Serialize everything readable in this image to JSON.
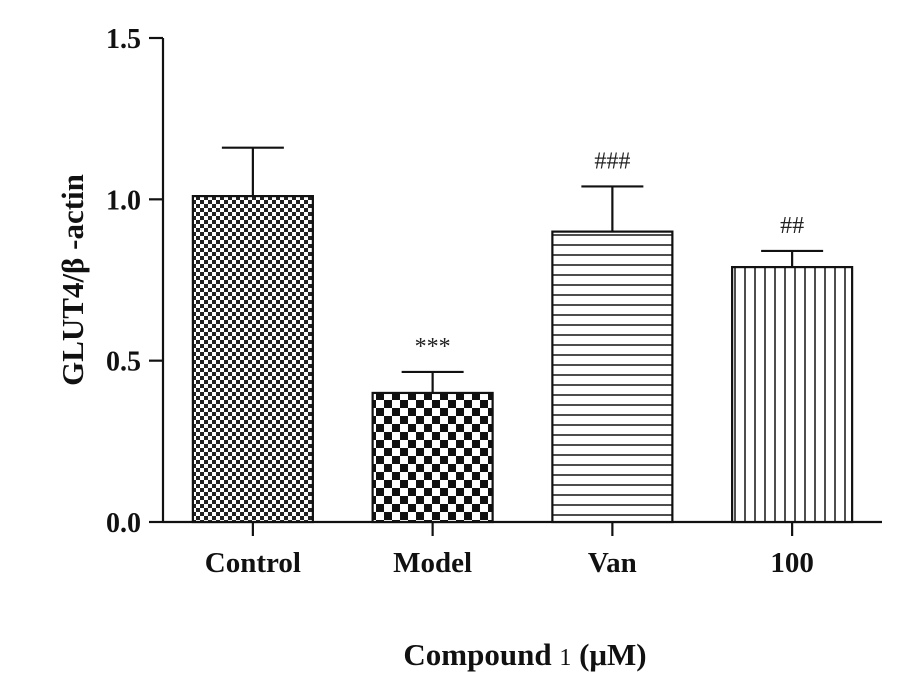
{
  "chart_data": {
    "type": "bar",
    "title": "",
    "xlabel": "Compound 1 (μM)",
    "xlabel_parts": {
      "main": "Compound ",
      "num": "1",
      "unit": " (μM)"
    },
    "ylabel": "GLUT4/β -actin",
    "ylim": [
      0,
      1.5
    ],
    "yticks": [
      "0.0",
      "0.5",
      "1.0",
      "1.5"
    ],
    "categories": [
      "Control",
      "Model",
      "Van",
      "100"
    ],
    "values": [
      1.01,
      0.4,
      0.9,
      0.79
    ],
    "errors": [
      0.15,
      0.065,
      0.14,
      0.05
    ],
    "annotations": [
      "",
      "***",
      "###",
      "##"
    ],
    "patterns": [
      "fine-checker",
      "checker",
      "horizontal-lines",
      "vertical-lines"
    ],
    "grid": false
  }
}
